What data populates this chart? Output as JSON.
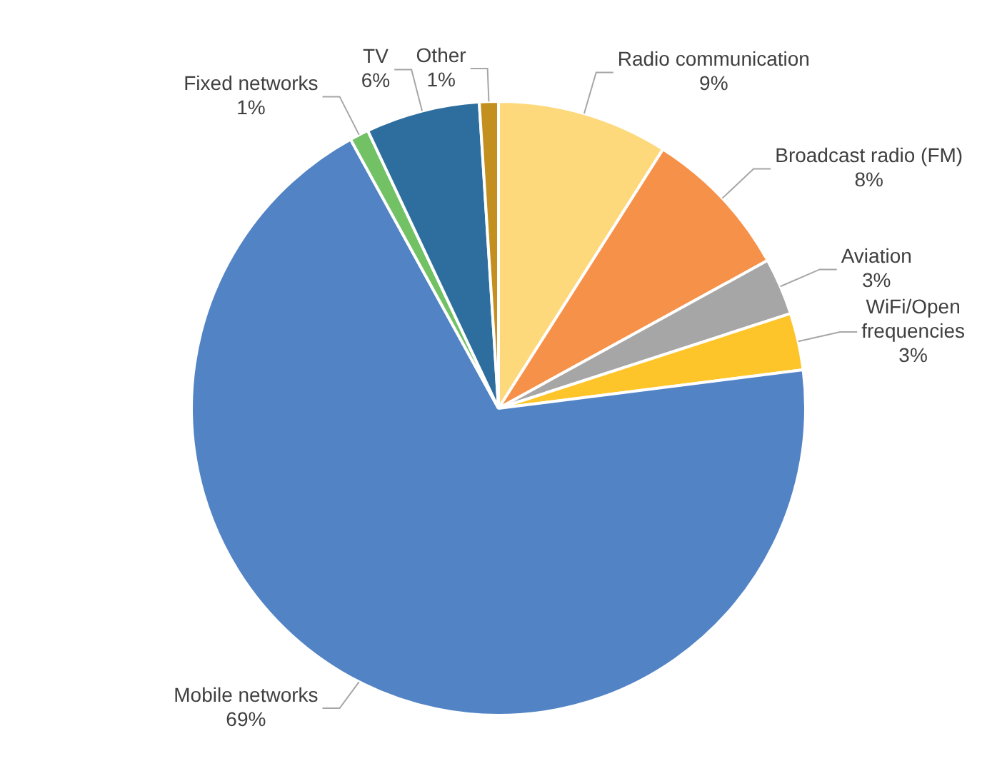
{
  "chart_data": {
    "type": "pie",
    "categories": [
      "Radio communication",
      "Broadcast radio (FM)",
      "Aviation",
      "WiFi/Open frequencies",
      "Mobile networks",
      "Fixed networks",
      "TV",
      "Other"
    ],
    "values": [
      9,
      8,
      3,
      3,
      69,
      1,
      6,
      1
    ],
    "value_labels": [
      "9%",
      "8%",
      "3%",
      "3%",
      "69%",
      "1%",
      "6%",
      "1%"
    ],
    "colors": [
      "#fdd97b",
      "#f6914a",
      "#a6a6a6",
      "#fec52a",
      "#5183c5",
      "#72c164",
      "#2d6e9f",
      "#c39020"
    ],
    "legend": false
  }
}
